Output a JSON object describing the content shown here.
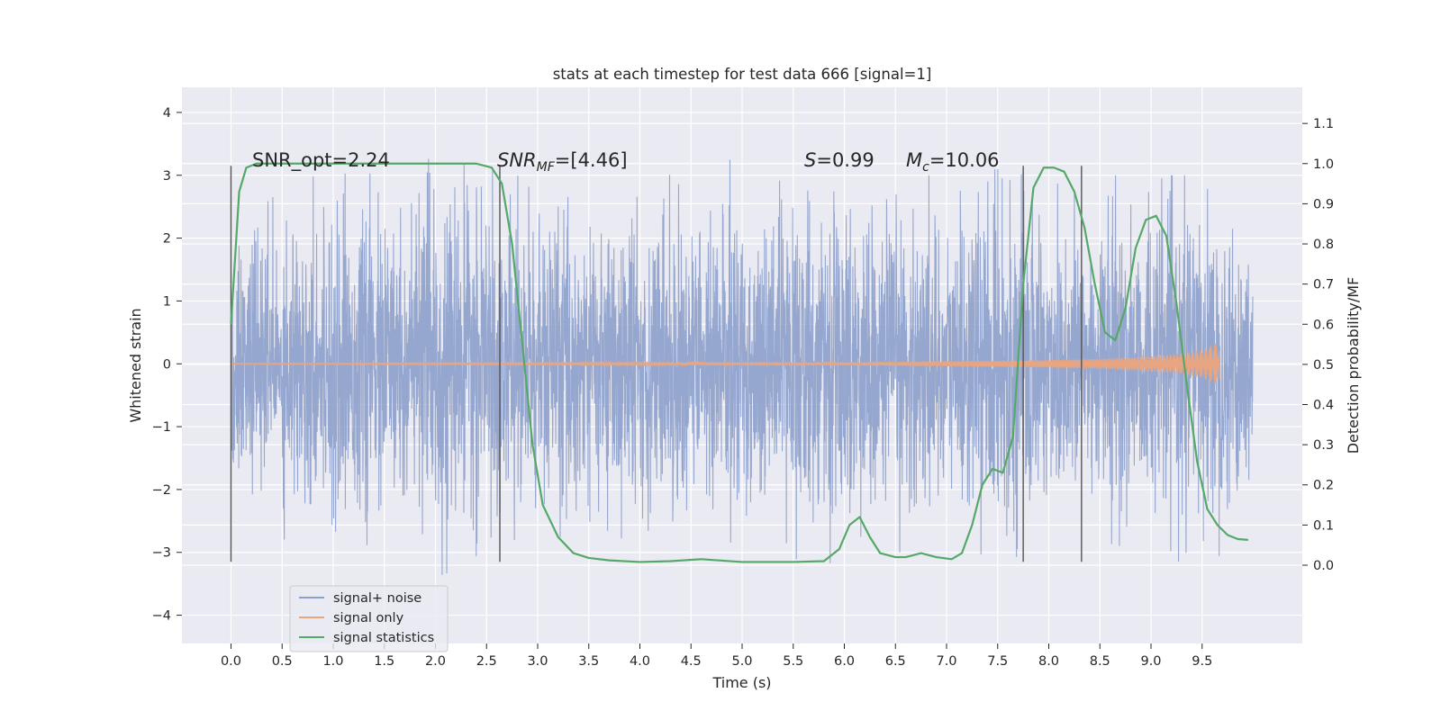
{
  "chart_data": {
    "type": "line",
    "title": "stats at each timestep for test data 666 [signal=1]",
    "xlabel": "Time (s)",
    "ylabel_left": "Whitened strain",
    "ylabel_right": "Detection probability/MF",
    "xlim": [
      -0.48,
      10.48
    ],
    "ylim_left": [
      -4.45,
      4.4
    ],
    "ylim_right": [
      -0.195,
      1.19
    ],
    "x_ticks": [
      "0.0",
      "0.5",
      "1.0",
      "1.5",
      "2.0",
      "2.5",
      "3.0",
      "3.5",
      "4.0",
      "4.5",
      "5.0",
      "5.5",
      "6.0",
      "6.5",
      "7.0",
      "7.5",
      "8.0",
      "8.5",
      "9.0",
      "9.5"
    ],
    "y_left_ticks": [
      "4",
      "3",
      "2",
      "1",
      "0",
      "−1",
      "−2",
      "−3",
      "−4"
    ],
    "y_right_ticks": [
      "1.1",
      "1.0",
      "0.9",
      "0.8",
      "0.7",
      "0.6",
      "0.5",
      "0.4",
      "0.3",
      "0.2",
      "0.1",
      "0.0"
    ],
    "grid": true,
    "legend_position": "lower-left",
    "annotations": {
      "snr_opt": "SNR_opt=2.24",
      "snr_mf_main": "SNR",
      "snr_mf_sub": "MF",
      "snr_mf_rest": "=[4.46]",
      "s_main": "S",
      "s_rest": "=0.99",
      "mc_main": "M",
      "mc_sub": "c",
      "mc_rest": "=10.06"
    },
    "vertical_markers": [
      0.0,
      2.63,
      7.75,
      8.32
    ],
    "vertical_marker_range": [
      -3.15,
      3.15
    ],
    "series": [
      {
        "name": "signal+ noise",
        "color": "#8da0cb",
        "axis": "left",
        "x_range": [
          0.0,
          9.995
        ],
        "envelope": {
          "x": [
            0,
            0.5,
            1,
            1.5,
            2,
            2.5,
            3,
            3.5,
            4,
            4.5,
            5,
            5.5,
            6,
            6.5,
            7,
            7.5,
            8,
            8.5,
            9,
            9.5,
            9.995
          ],
          "upper": [
            2.5,
            2.8,
            3.1,
            3.0,
            3.3,
            3.1,
            3.0,
            2.9,
            3.1,
            3.0,
            3.4,
            2.9,
            3.1,
            3.0,
            3.0,
            3.1,
            3.2,
            3.0,
            3.0,
            3.0,
            2.8
          ],
          "lower": [
            -2.4,
            -2.8,
            -3.2,
            -3.0,
            -3.4,
            -3.1,
            -3.0,
            -3.3,
            -2.9,
            -3.0,
            -2.9,
            -3.1,
            -3.2,
            -3.0,
            -3.0,
            -3.5,
            -3.1,
            -3.0,
            -3.3,
            -3.3,
            -2.8
          ]
        }
      },
      {
        "name": "signal only",
        "color": "#e8a582",
        "axis": "left",
        "x_range": [
          0.0,
          9.67
        ],
        "envelope": {
          "x": [
            0.0,
            6.0,
            7.0,
            8.0,
            8.5,
            9.0,
            9.3,
            9.5,
            9.6,
            9.65,
            9.67
          ],
          "amplitude": [
            0.01,
            0.02,
            0.04,
            0.06,
            0.08,
            0.12,
            0.16,
            0.22,
            0.3,
            0.34,
            0.3
          ]
        }
      },
      {
        "name": "signal statistics",
        "color": "#55a868",
        "axis": "right",
        "x": [
          0.0,
          0.08,
          0.15,
          0.25,
          0.4,
          1.0,
          2.0,
          2.4,
          2.55,
          2.65,
          2.75,
          2.85,
          2.95,
          3.05,
          3.2,
          3.35,
          3.5,
          3.7,
          4.0,
          4.3,
          4.6,
          5.0,
          5.5,
          5.8,
          5.95,
          6.05,
          6.15,
          6.25,
          6.35,
          6.5,
          6.6,
          6.75,
          6.9,
          7.05,
          7.15,
          7.25,
          7.35,
          7.45,
          7.55,
          7.65,
          7.75,
          7.85,
          7.95,
          8.05,
          8.15,
          8.25,
          8.35,
          8.45,
          8.55,
          8.65,
          8.75,
          8.85,
          8.95,
          9.05,
          9.15,
          9.25,
          9.35,
          9.45,
          9.55,
          9.65,
          9.75,
          9.85,
          9.95
        ],
        "y": [
          0.6,
          0.93,
          0.99,
          1.0,
          1.0,
          1.0,
          1.0,
          1.0,
          0.99,
          0.95,
          0.8,
          0.55,
          0.3,
          0.15,
          0.07,
          0.03,
          0.018,
          0.012,
          0.008,
          0.01,
          0.015,
          0.008,
          0.008,
          0.01,
          0.04,
          0.1,
          0.12,
          0.07,
          0.03,
          0.02,
          0.02,
          0.03,
          0.02,
          0.015,
          0.03,
          0.1,
          0.2,
          0.24,
          0.23,
          0.32,
          0.7,
          0.94,
          0.99,
          0.99,
          0.98,
          0.93,
          0.84,
          0.7,
          0.58,
          0.56,
          0.64,
          0.79,
          0.86,
          0.87,
          0.82,
          0.65,
          0.45,
          0.26,
          0.14,
          0.1,
          0.075,
          0.065,
          0.063
        ]
      }
    ]
  }
}
